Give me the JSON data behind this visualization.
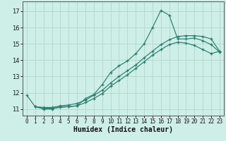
{
  "xlabel": "Humidex (Indice chaleur)",
  "background_color": "#ceeee8",
  "grid_color": "#b8d8d2",
  "line_color": "#2d7d6e",
  "xlim": [
    -0.5,
    23.5
  ],
  "ylim": [
    10.6,
    17.6
  ],
  "xticks": [
    0,
    1,
    2,
    3,
    4,
    5,
    6,
    7,
    8,
    9,
    10,
    11,
    12,
    13,
    14,
    15,
    16,
    17,
    18,
    19,
    20,
    21,
    22,
    23
  ],
  "yticks": [
    11,
    12,
    13,
    14,
    15,
    16,
    17
  ],
  "line1_x": [
    0,
    1,
    2,
    3,
    4,
    5,
    6,
    7,
    8,
    9,
    10,
    11,
    12,
    13,
    14,
    15,
    16,
    17,
    18,
    19,
    20,
    21,
    22,
    23
  ],
  "line1_y": [
    11.85,
    11.15,
    11.0,
    11.0,
    11.15,
    11.15,
    11.2,
    11.65,
    11.9,
    12.5,
    13.25,
    13.65,
    13.95,
    14.4,
    15.0,
    16.0,
    17.05,
    16.75,
    15.3,
    15.3,
    15.35,
    15.2,
    14.95,
    14.5
  ],
  "line2_x": [
    1,
    2,
    3,
    4,
    5,
    6,
    7,
    8,
    9,
    10,
    11,
    12,
    13,
    14,
    15,
    16,
    17,
    18,
    19,
    20,
    21,
    22,
    23
  ],
  "line2_y": [
    11.15,
    11.1,
    11.1,
    11.2,
    11.25,
    11.35,
    11.55,
    11.85,
    12.15,
    12.6,
    13.0,
    13.35,
    13.7,
    14.15,
    14.55,
    14.95,
    15.25,
    15.45,
    15.5,
    15.5,
    15.45,
    15.3,
    14.55
  ],
  "line3_x": [
    1,
    2,
    3,
    4,
    5,
    6,
    7,
    8,
    9,
    10,
    11,
    12,
    13,
    14,
    15,
    16,
    17,
    18,
    19,
    20,
    21,
    22,
    23
  ],
  "line3_y": [
    11.15,
    11.05,
    11.05,
    11.1,
    11.15,
    11.2,
    11.4,
    11.65,
    11.95,
    12.4,
    12.75,
    13.1,
    13.5,
    13.9,
    14.3,
    14.65,
    14.95,
    15.1,
    15.05,
    14.9,
    14.65,
    14.4,
    14.55
  ]
}
